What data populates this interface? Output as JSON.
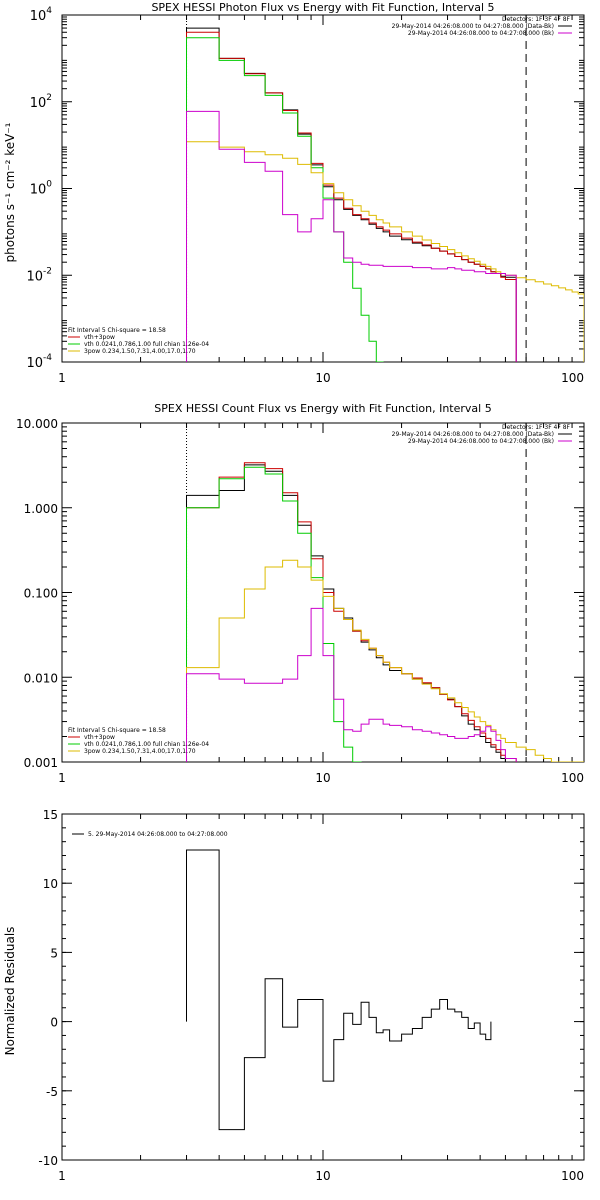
{
  "chart_data": [
    {
      "type": "line",
      "title": "SPEX HESSI Photon Flux vs Energy with Fit Function, Interval 5",
      "ylabel": "photons s⁻¹ cm⁻² keV⁻¹",
      "xlabel": "",
      "xscale": "log",
      "yscale": "log",
      "xlim": [
        1,
        100
      ],
      "ylim": [
        0.0001,
        10000
      ],
      "xticks": [
        {
          "v": 1,
          "label": "1"
        },
        {
          "v": 10,
          "label": "10"
        },
        {
          "v": 100,
          "label": "100"
        }
      ],
      "yticks": [
        {
          "v": 0.0001,
          "base": "10",
          "exp": "-4"
        },
        {
          "v": 0.01,
          "base": "10",
          "exp": "-2"
        },
        {
          "v": 1,
          "base": "10",
          "exp": "0"
        },
        {
          "v": 100,
          "base": "10",
          "exp": "2"
        },
        {
          "v": 10000,
          "base": "10",
          "exp": "4"
        }
      ],
      "vlines": [
        {
          "x": 3,
          "style": "dotted",
          "color": "#000000"
        },
        {
          "x": 60,
          "style": "dashed",
          "color": "#000000"
        }
      ],
      "legend_right": {
        "header": "Detectors: 1F 3F 4F 8F",
        "entries": [
          {
            "label": "29-May-2014 04:26:08.000 to 04:27:08.000 (Data-Bk)",
            "color": "#000000"
          },
          {
            "label": "29-May-2014 04:26:08.000 to 04:27:08.000 (Bk)",
            "color": "#cc00cc"
          }
        ]
      },
      "legend_left": {
        "header": "Fit Interval 5   Chi-square = 18.58",
        "entries": [
          {
            "label": "vth+3pow",
            "color": "#cc0000"
          },
          {
            "label": "vth 0.0241,0.786,1.00  full chian 1.26e-04",
            "color": "#00cc00"
          },
          {
            "label": "3pow 0.234,1.50,7.31,4.00,17.0,1.70",
            "color": "#ddbb00"
          }
        ]
      },
      "edges": [
        3,
        4,
        5,
        6,
        7,
        8,
        9,
        10,
        11,
        12,
        13,
        14,
        15,
        16,
        17,
        18,
        20,
        22,
        24,
        26,
        28,
        30,
        32,
        34,
        36,
        38,
        40,
        42,
        44,
        46,
        48,
        50,
        55,
        60,
        65,
        70,
        75,
        80,
        85,
        90,
        95,
        100
      ],
      "series": [
        {
          "color": "#000000",
          "values": [
            5000,
            1000,
            450,
            160,
            65,
            18,
            3.5,
            1.1,
            0.55,
            0.33,
            0.24,
            0.19,
            0.15,
            0.12,
            0.1,
            0.08,
            0.066,
            0.055,
            0.048,
            0.042,
            0.036,
            0.031,
            0.027,
            0.023,
            0.02,
            0.018,
            0.016,
            0.014,
            0.012,
            0.011,
            0.0095,
            0.009
          ]
        },
        {
          "color": "#cc0000",
          "values": [
            4000,
            1000,
            440,
            160,
            63,
            19,
            3.8,
            1.2,
            0.6,
            0.35,
            0.25,
            0.2,
            0.16,
            0.13,
            0.11,
            0.09,
            0.072,
            0.058,
            0.05,
            0.042,
            0.036,
            0.031,
            0.027,
            0.023,
            0.02,
            0.018,
            0.016,
            0.014,
            0.012,
            0.011,
            0.009,
            0.008
          ]
        },
        {
          "color": "#00cc00",
          "values": [
            3000,
            900,
            400,
            140,
            55,
            16,
            3,
            0.6,
            0.1,
            0.02,
            0.005,
            0.0012,
            0.0003,
            8e-05
          ]
        },
        {
          "color": "#ddbb00",
          "values": [
            12,
            9,
            7,
            6,
            5,
            3.6,
            2.3,
            1.3,
            0.8,
            0.55,
            0.4,
            0.3,
            0.24,
            0.19,
            0.16,
            0.13,
            0.1,
            0.08,
            0.065,
            0.054,
            0.046,
            0.039,
            0.033,
            0.028,
            0.024,
            0.021,
            0.018,
            0.016,
            0.014,
            0.012,
            0.011,
            0.01,
            0.0088,
            0.0079,
            0.0071,
            0.0063,
            0.0057,
            0.0051,
            0.0046,
            0.0041,
            0.0037
          ]
        },
        {
          "color": "#cc00cc",
          "values": [
            60,
            8,
            4,
            2.5,
            0.25,
            0.1,
            0.2,
            0.55,
            0.1,
            0.025,
            0.02,
            0.018,
            0.017,
            0.017,
            0.016,
            0.016,
            0.016,
            0.015,
            0.015,
            0.014,
            0.014,
            0.015,
            0.014,
            0.013,
            0.013,
            0.012,
            0.012,
            0.011,
            0.011,
            0.011,
            0.011,
            0.01
          ]
        }
      ]
    },
    {
      "type": "line",
      "title": "SPEX HESSI Count Flux vs Energy with Fit Function, Interval 5",
      "ylabel": "",
      "xlabel": "",
      "xscale": "log",
      "yscale": "log",
      "xlim": [
        1,
        100
      ],
      "ylim": [
        0.001,
        10
      ],
      "xticks": [
        {
          "v": 1,
          "label": "1"
        },
        {
          "v": 10,
          "label": "10"
        },
        {
          "v": 100,
          "label": "100"
        }
      ],
      "yticks": [
        {
          "v": 0.001,
          "label": "0.001"
        },
        {
          "v": 0.01,
          "label": "0.010"
        },
        {
          "v": 0.1,
          "label": "0.100"
        },
        {
          "v": 1,
          "label": "1.000"
        },
        {
          "v": 10,
          "label": "10.000"
        }
      ],
      "vlines": [
        {
          "x": 3,
          "style": "dotted",
          "color": "#000000"
        },
        {
          "x": 60,
          "style": "dashed",
          "color": "#000000"
        }
      ],
      "legend_right": {
        "header": "Detectors: 1F 3F 4F 8F",
        "entries": [
          {
            "label": "29-May-2014 04:26:08.000 to 04:27:08.000 (Data-Bk)",
            "color": "#000000"
          },
          {
            "label": "29-May-2014 04:26:08.000 to 04:27:08.000 (Bk)",
            "color": "#cc00cc"
          }
        ]
      },
      "legend_left": {
        "header": "Fit Interval 5   Chi-square = 18.58",
        "entries": [
          {
            "label": "vth+3pow",
            "color": "#cc0000"
          },
          {
            "label": "vth 0.0241,0.786,1.00  full chian 1.26e-04",
            "color": "#00cc00"
          },
          {
            "label": "3pow 0.234,1.50,7.31,4.00,17.0,1.70",
            "color": "#ddbb00"
          }
        ]
      },
      "edges": [
        3,
        4,
        5,
        6,
        7,
        8,
        9,
        10,
        11,
        12,
        13,
        14,
        15,
        16,
        17,
        18,
        20,
        22,
        24,
        26,
        28,
        30,
        32,
        34,
        36,
        38,
        40,
        42,
        44,
        46,
        48,
        50,
        55,
        60,
        65,
        70,
        75,
        80,
        85,
        90,
        95,
        100
      ],
      "series": [
        {
          "color": "#000000",
          "values": [
            1.4,
            1.6,
            3.2,
            2.7,
            1.4,
            0.62,
            0.27,
            0.11,
            0.065,
            0.05,
            0.035,
            0.026,
            0.021,
            0.017,
            0.014,
            0.012,
            0.011,
            0.0095,
            0.0085,
            0.0075,
            0.0063,
            0.0055,
            0.0045,
            0.0035,
            0.0028,
            0.0024,
            0.002,
            0.0017,
            0.0015,
            0.0013,
            0.0011,
            0.001
          ]
        },
        {
          "color": "#cc0000",
          "values": [
            1.0,
            2.3,
            3.4,
            2.9,
            1.5,
            0.68,
            0.25,
            0.1,
            0.06,
            0.048,
            0.035,
            0.027,
            0.022,
            0.018,
            0.015,
            0.013,
            0.011,
            0.0098,
            0.0086,
            0.0075,
            0.0063,
            0.0054,
            0.0045,
            0.0037,
            0.0031,
            0.0026,
            0.0022,
            0.0019,
            0.0016,
            0.0014,
            0.0012,
            0.0011
          ]
        },
        {
          "color": "#00cc00",
          "values": [
            1.0,
            2.2,
            3.0,
            2.5,
            1.2,
            0.5,
            0.15,
            0.025,
            0.003,
            0.0015,
            0.0005
          ]
        },
        {
          "color": "#ddbb00",
          "values": [
            0.013,
            0.05,
            0.11,
            0.2,
            0.24,
            0.2,
            0.14,
            0.09,
            0.065,
            0.048,
            0.036,
            0.028,
            0.022,
            0.018,
            0.015,
            0.013,
            0.011,
            0.0095,
            0.0083,
            0.0073,
            0.0064,
            0.0057,
            0.005,
            0.0044,
            0.0039,
            0.0034,
            0.003,
            0.0027,
            0.0024,
            0.0021,
            0.0019,
            0.0017,
            0.0015,
            0.0014,
            0.0012,
            0.0011,
            0.001,
            0.0009,
            0.00085,
            0.0008,
            0.00075
          ]
        },
        {
          "color": "#cc00cc",
          "values": [
            0.011,
            0.0095,
            0.0085,
            0.0085,
            0.0095,
            0.018,
            0.065,
            0.018,
            0.0055,
            0.0024,
            0.0023,
            0.0028,
            0.0032,
            0.0032,
            0.0028,
            0.0027,
            0.0026,
            0.0024,
            0.0023,
            0.0022,
            0.0021,
            0.002,
            0.0019,
            0.0019,
            0.002,
            0.0021,
            0.0023,
            0.0026,
            0.0023,
            0.0018,
            0.0014,
            0.0011
          ]
        }
      ]
    },
    {
      "type": "line",
      "title": "",
      "ylabel": "Normalized Residuals",
      "xlabel": "",
      "xscale": "log",
      "yscale": "linear",
      "xlim": [
        1,
        100
      ],
      "ylim": [
        -10,
        15
      ],
      "xticks": [
        {
          "v": 1,
          "label": "1"
        },
        {
          "v": 10,
          "label": "10"
        },
        {
          "v": 100,
          "label": "100"
        }
      ],
      "yticks": [
        {
          "v": -10,
          "label": "-10"
        },
        {
          "v": -5,
          "label": "-5"
        },
        {
          "v": 0,
          "label": "0"
        },
        {
          "v": 5,
          "label": "5"
        },
        {
          "v": 10,
          "label": "10"
        },
        {
          "v": 15,
          "label": "15"
        }
      ],
      "vlines": [],
      "legend_right": null,
      "legend_left": null,
      "legend_top": {
        "entries": [
          {
            "label": "5. 29-May-2014 04:26:08.000 to 04:27:08.000",
            "color": "#000000"
          }
        ]
      },
      "edges": [
        3,
        4,
        5,
        6,
        7,
        8,
        9,
        10,
        11,
        12,
        13,
        14,
        15,
        16,
        17,
        18,
        20,
        22,
        24,
        26,
        28,
        30,
        32,
        34,
        36,
        38,
        40,
        42,
        44,
        46,
        48,
        50,
        55,
        60
      ],
      "series": [
        {
          "color": "#000000",
          "values": [
            12.4,
            -7.8,
            -2.6,
            3.1,
            -0.4,
            1.6,
            1.6,
            -4.3,
            -1.3,
            0.6,
            -0.2,
            1.4,
            0.3,
            -0.8,
            -0.6,
            -1.4,
            -0.9,
            -0.5,
            0.3,
            0.9,
            1.6,
            0.9,
            0.7,
            0.3,
            -0.5,
            -0.1,
            -0.9,
            -1.3
          ]
        }
      ]
    }
  ]
}
